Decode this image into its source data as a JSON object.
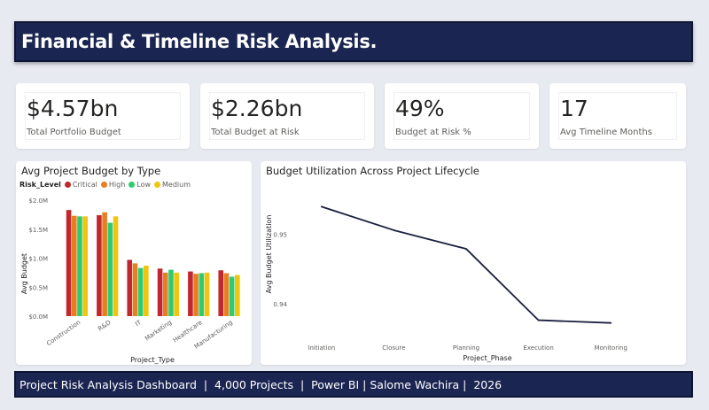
{
  "header": {
    "title": "Financial & Timeline Risk Analysis."
  },
  "kpis": [
    {
      "value": "$4.57bn",
      "label": "Total Portfolio Budget"
    },
    {
      "value": "$2.26bn",
      "label": "Total Budget at Risk"
    },
    {
      "value": "49%",
      "label": "Budget at Risk %"
    },
    {
      "value": "17",
      "label": "Avg Timeline Months"
    }
  ],
  "budget_chart": {
    "title": "Avg Project Budget by Type",
    "legend_title": "Risk_Level",
    "series_names": [
      "Critical",
      "High",
      "Low",
      "Medium"
    ],
    "series_colors": [
      "#c1272d",
      "#e67e22",
      "#2ecc71",
      "#f1c40f"
    ],
    "ytick_labels": [
      "$0.0M",
      "$0.5M",
      "$1.0M",
      "$1.5M",
      "$2.0M"
    ],
    "ylabel": "Avg Budget",
    "xlabel": "Project_Type"
  },
  "util_chart": {
    "title": "Budget Utilization Across Project Lifecycle",
    "ytick_labels": [
      "0.94",
      "0.95"
    ],
    "ylabel": "Avg Budget Utilization",
    "xlabel": "Project_Phase",
    "line_color": "#1b2040"
  },
  "chart_data": [
    {
      "type": "bar",
      "title": "Avg Project Budget by Type",
      "categories": [
        "Construction",
        "R&D",
        "IT",
        "Marketing",
        "Healthcare",
        "Manufacturing"
      ],
      "series": [
        {
          "name": "Critical",
          "values": [
            1.83,
            1.74,
            0.97,
            0.82,
            0.77,
            0.79
          ]
        },
        {
          "name": "High",
          "values": [
            1.73,
            1.79,
            0.91,
            0.75,
            0.73,
            0.74
          ]
        },
        {
          "name": "Low",
          "values": [
            1.72,
            1.61,
            0.83,
            0.8,
            0.74,
            0.68
          ]
        },
        {
          "name": "Medium",
          "values": [
            1.72,
            1.72,
            0.87,
            0.75,
            0.75,
            0.71
          ]
        }
      ],
      "xlabel": "Project_Type",
      "ylabel": "Avg Budget",
      "ylim": [
        0,
        2.0
      ],
      "unit": "$M",
      "legend": "top-left",
      "grid": false
    },
    {
      "type": "line",
      "title": "Budget Utilization Across Project Lifecycle",
      "x": [
        "Initiation",
        "Closure",
        "Planning",
        "Execution",
        "Monitoring"
      ],
      "series": [
        {
          "values": [
            0.954,
            0.9506,
            0.9479,
            0.9376,
            0.9372
          ]
        }
      ],
      "xlabel": "Project_Phase",
      "ylabel": "Avg Budget Utilization",
      "ylim": [
        0.9355,
        0.9575
      ],
      "grid": false
    }
  ],
  "footer": {
    "text": "Project Risk Analysis Dashboard  |  4,000 Projects  |  Power BI | Salome Wachira |  2026"
  }
}
